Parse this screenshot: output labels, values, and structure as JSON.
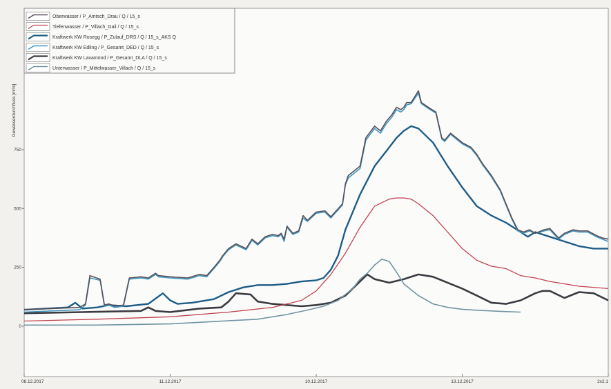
{
  "chart_data": {
    "type": "line",
    "title": "",
    "ylabel": "Gewässerdurchfluss [m³/s]",
    "xlabel": "",
    "ylim": [
      0,
      1000
    ],
    "yticks": [
      0,
      250,
      500,
      750
    ],
    "ytick_labels": [
      "0",
      "250",
      "500",
      "750"
    ],
    "xlim": [
      0,
      4.0
    ],
    "xticks": [
      0,
      1,
      2,
      3,
      4
    ],
    "xtick_labels": [
      "08.12.2017",
      "11.12.2017",
      "10.12.2017",
      "13.12.2017",
      "2x2.1"
    ],
    "grid": false,
    "legend_position": "top-left",
    "series": [
      {
        "name": "Oberwasser / P_Amtsch_Drau / Q / 15_s",
        "color": "#5a4e58",
        "width": 1.6,
        "x": [
          0,
          0.38,
          0.42,
          0.45,
          0.52,
          0.55,
          0.58,
          0.62,
          0.68,
          0.72,
          0.8,
          0.85,
          0.9,
          0.92,
          1.0,
          1.12,
          1.2,
          1.25,
          1.3,
          1.34,
          1.36,
          1.4,
          1.45,
          1.52,
          1.56,
          1.6,
          1.65,
          1.7,
          1.74,
          1.76,
          1.78,
          1.8,
          1.84,
          1.88,
          1.91,
          1.94,
          2.0,
          2.06,
          2.1,
          2.18,
          2.2,
          2.22,
          2.26,
          2.3,
          2.34,
          2.4,
          2.44,
          2.48,
          2.52,
          2.55,
          2.58,
          2.6,
          2.62,
          2.65,
          2.7,
          2.72,
          2.78,
          2.82,
          2.86,
          2.88,
          2.92,
          2.96,
          3.0,
          3.06,
          3.1,
          3.14,
          3.2,
          3.26,
          3.3,
          3.34,
          3.38,
          3.42,
          3.46,
          3.5,
          3.56,
          3.6,
          3.66,
          3.7,
          3.76,
          3.8,
          3.86,
          3.92,
          3.96,
          4.0
        ],
        "y": [
          70,
          80,
          95,
          215,
          200,
          90,
          95,
          85,
          90,
          205,
          210,
          205,
          225,
          215,
          210,
          205,
          220,
          215,
          250,
          280,
          300,
          330,
          350,
          330,
          370,
          350,
          380,
          390,
          385,
          395,
          370,
          425,
          395,
          405,
          470,
          450,
          485,
          490,
          465,
          520,
          605,
          640,
          660,
          680,
          800,
          850,
          830,
          870,
          900,
          930,
          920,
          930,
          950,
          950,
          1000,
          950,
          925,
          910,
          800,
          790,
          820,
          800,
          780,
          760,
          730,
          690,
          640,
          580,
          520,
          460,
          410,
          400,
          410,
          395,
          410,
          415,
          375,
          395,
          410,
          405,
          405,
          385,
          375,
          370
        ]
      },
      {
        "name": "Tiefenwasser / P_Villach_Gail / Q / 15_s",
        "color": "#c0424e",
        "width": 1.3,
        "x": [
          0,
          0.5,
          1.0,
          1.4,
          1.7,
          1.9,
          2.0,
          2.1,
          2.2,
          2.3,
          2.4,
          2.5,
          2.55,
          2.6,
          2.65,
          2.7,
          2.8,
          2.9,
          3.0,
          3.1,
          3.2,
          3.3,
          3.4,
          3.5,
          3.6,
          3.8,
          4.0
        ],
        "y": [
          22,
          30,
          40,
          60,
          80,
          110,
          150,
          220,
          310,
          420,
          510,
          540,
          545,
          545,
          540,
          520,
          470,
          400,
          330,
          280,
          255,
          245,
          215,
          205,
          190,
          170,
          160
        ]
      },
      {
        "name": "Kraftwerk KW Rosegg / P_Zulauf_DRS / Q / 15_s_AKS Q",
        "color": "#1d5c87",
        "width": 2.4,
        "x": [
          0,
          0.3,
          0.35,
          0.4,
          0.5,
          0.58,
          0.7,
          0.85,
          0.95,
          1.0,
          1.05,
          1.15,
          1.3,
          1.4,
          1.5,
          1.6,
          1.7,
          1.8,
          1.9,
          2.0,
          2.05,
          2.1,
          2.15,
          2.2,
          2.3,
          2.4,
          2.5,
          2.55,
          2.6,
          2.65,
          2.7,
          2.8,
          2.9,
          3.0,
          3.1,
          3.2,
          3.3,
          3.35,
          3.4,
          3.45,
          3.5,
          3.6,
          3.7,
          3.8,
          3.9,
          4.0
        ],
        "y": [
          70,
          80,
          100,
          75,
          80,
          90,
          85,
          95,
          140,
          110,
          95,
          100,
          115,
          145,
          165,
          175,
          175,
          180,
          190,
          195,
          205,
          240,
          300,
          410,
          560,
          680,
          760,
          800,
          830,
          850,
          840,
          780,
          680,
          590,
          510,
          470,
          440,
          420,
          400,
          380,
          400,
          380,
          360,
          340,
          330,
          330
        ]
      },
      {
        "name": "Kraftwerk KW Edling / P_Gesamt_DED / Q / 15_s",
        "color": "#3d97bf",
        "width": 1.6,
        "x": [
          0,
          0.38,
          0.42,
          0.45,
          0.52,
          0.55,
          0.58,
          0.62,
          0.68,
          0.72,
          0.8,
          0.85,
          0.9,
          0.92,
          1.0,
          1.12,
          1.2,
          1.25,
          1.3,
          1.34,
          1.36,
          1.4,
          1.45,
          1.52,
          1.56,
          1.6,
          1.65,
          1.7,
          1.74,
          1.76,
          1.78,
          1.8,
          1.84,
          1.88,
          1.91,
          1.94,
          2.0,
          2.06,
          2.1,
          2.18,
          2.2,
          2.22,
          2.26,
          2.3,
          2.34,
          2.4,
          2.44,
          2.48,
          2.52,
          2.55,
          2.58,
          2.6,
          2.62,
          2.65,
          2.7,
          2.72,
          2.78,
          2.82,
          2.86,
          2.88,
          2.92,
          2.96,
          3.0,
          3.06,
          3.1,
          3.14,
          3.2,
          3.26,
          3.3,
          3.34,
          3.38,
          3.42,
          3.46,
          3.5,
          3.56,
          3.6,
          3.66,
          3.7,
          3.76,
          3.8,
          3.86,
          3.92,
          3.96,
          4.0
        ],
        "y": [
          60,
          70,
          90,
          205,
          195,
          85,
          90,
          80,
          85,
          200,
          205,
          200,
          220,
          210,
          205,
          200,
          215,
          210,
          245,
          275,
          295,
          325,
          345,
          325,
          365,
          345,
          375,
          385,
          380,
          390,
          360,
          420,
          390,
          400,
          460,
          445,
          480,
          485,
          460,
          515,
          600,
          630,
          650,
          670,
          790,
          840,
          820,
          860,
          890,
          920,
          910,
          920,
          940,
          945,
          990,
          945,
          920,
          905,
          795,
          785,
          815,
          795,
          775,
          755,
          725,
          685,
          635,
          575,
          515,
          455,
          405,
          395,
          405,
          395,
          405,
          410,
          370,
          390,
          405,
          400,
          400,
          380,
          370,
          360
        ]
      },
      {
        "name": "Kraftwerk KW Lavamünd / P_Gesamt_DLA / Q / 15_s",
        "color": "#3a3a40",
        "width": 2.6,
        "x": [
          0,
          0.4,
          0.8,
          0.85,
          0.9,
          1.0,
          1.2,
          1.35,
          1.4,
          1.45,
          1.55,
          1.6,
          1.7,
          1.8,
          1.9,
          2.0,
          2.1,
          2.2,
          2.3,
          2.35,
          2.4,
          2.5,
          2.6,
          2.7,
          2.8,
          2.9,
          3.0,
          3.1,
          3.2,
          3.3,
          3.4,
          3.5,
          3.55,
          3.6,
          3.7,
          3.8,
          3.9,
          4.0
        ],
        "y": [
          55,
          60,
          65,
          80,
          65,
          60,
          75,
          80,
          105,
          140,
          135,
          105,
          95,
          90,
          85,
          90,
          100,
          130,
          190,
          220,
          200,
          185,
          200,
          220,
          210,
          185,
          160,
          130,
          100,
          95,
          110,
          140,
          150,
          150,
          120,
          145,
          140,
          110
        ]
      },
      {
        "name": "Unterwasser / P_Mittelwasser_Villach / Q / 15_s",
        "color": "#6f94a2",
        "width": 1.6,
        "x": [
          0,
          0.5,
          1.0,
          1.3,
          1.6,
          1.8,
          1.95,
          2.05,
          2.15,
          2.25,
          2.3,
          2.35,
          2.4,
          2.45,
          2.5,
          2.55,
          2.6,
          2.7,
          2.8,
          2.9,
          3.0,
          3.1,
          3.2,
          3.3,
          3.4
        ],
        "y": [
          5,
          5,
          10,
          20,
          30,
          50,
          70,
          85,
          110,
          160,
          200,
          225,
          260,
          285,
          275,
          230,
          180,
          130,
          95,
          80,
          72,
          68,
          65,
          62,
          60
        ]
      }
    ]
  }
}
